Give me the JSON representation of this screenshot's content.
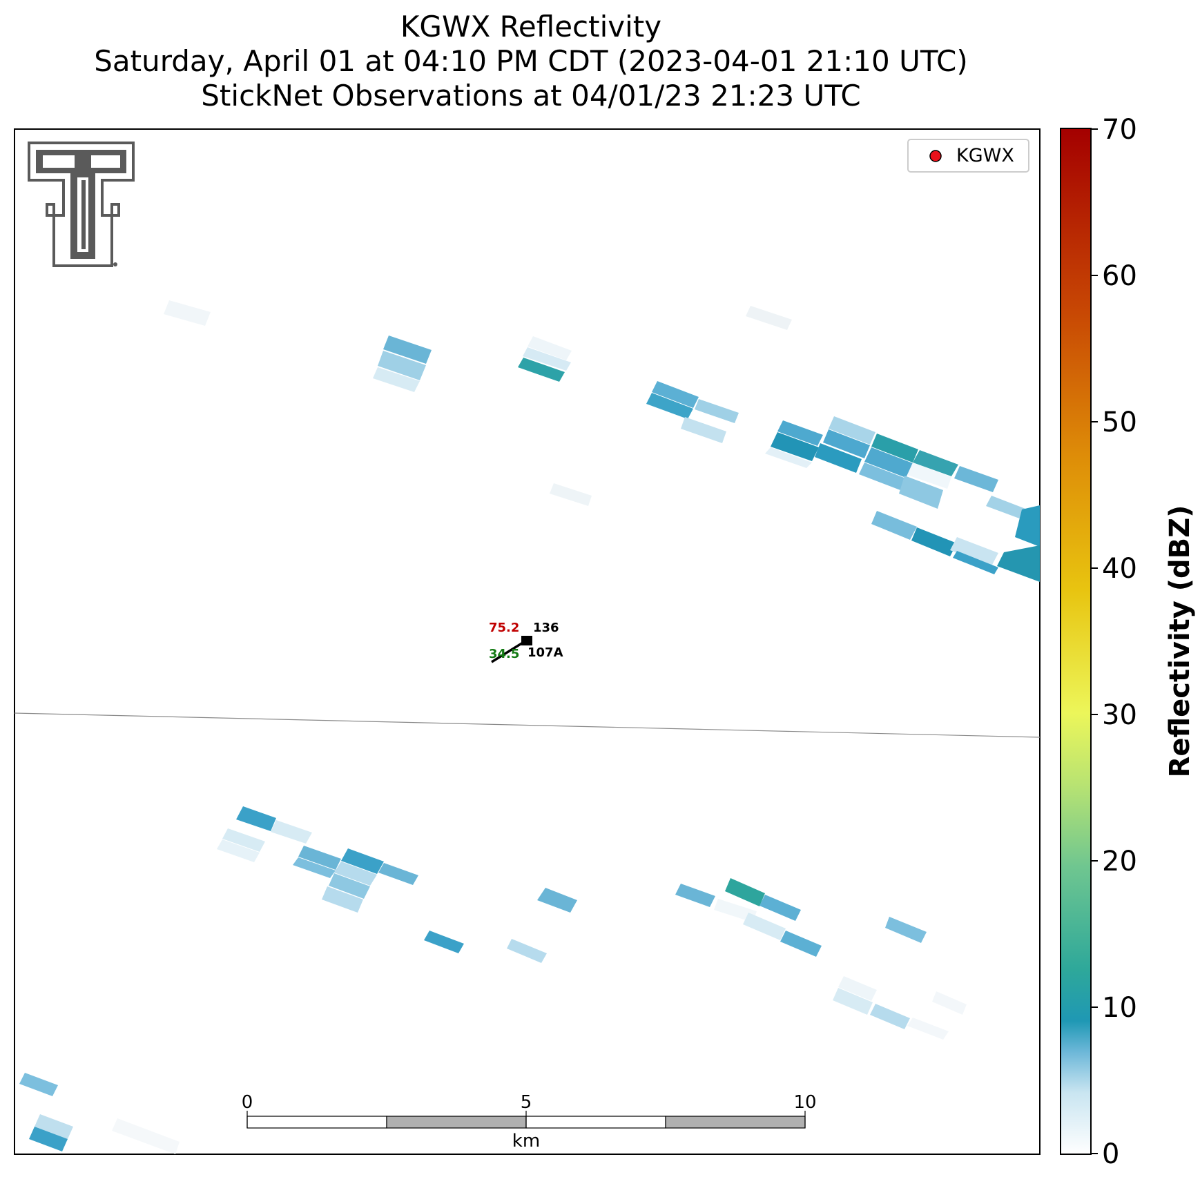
{
  "title": {
    "line1": "KGWX Reflectivity",
    "line2": "Saturday, April 01 at 04:10 PM CDT (2023-04-01 21:10 UTC)",
    "line3": "StickNet Observations at 04/01/23 21:23 UTC"
  },
  "legend": {
    "label": "KGWX",
    "marker_color": "#e8111a"
  },
  "station": {
    "temperature": "75.2",
    "pressure": "136",
    "dewpoint": "34.5",
    "id": "107A",
    "temperature_color": "#c00000",
    "dewpoint_color": "#137a13",
    "wind_direction_deg": 240
  },
  "scalebar": {
    "ticks": [
      "0",
      "5",
      "10"
    ],
    "unit": "km"
  },
  "colorbar": {
    "label": "Reflectivity (dBZ)",
    "ticks": [
      "0",
      "10",
      "20",
      "30",
      "40",
      "50",
      "60",
      "70"
    ],
    "range": [
      0,
      70
    ],
    "colors": [
      "#ffffff",
      "#6cb7d8",
      "#1f98b4",
      "#2ea89a",
      "#6fc690",
      "#b8e372",
      "#ecf65a",
      "#e8c410",
      "#de8d08",
      "#c84804",
      "#a40000"
    ]
  },
  "logo": {
    "text": "T",
    "color": "#5a5a5a"
  }
}
